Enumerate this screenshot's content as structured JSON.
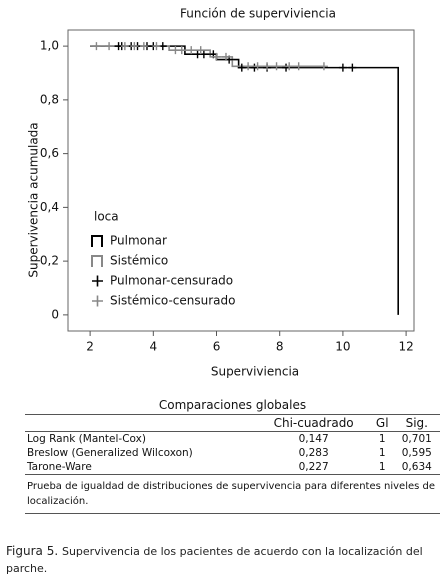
{
  "chart_data": {
    "type": "survival",
    "title": "Función de superviviencia",
    "x_label": "Superviviencia",
    "y_label": "Supervivencia acumulada",
    "xlim": [
      1.3,
      12.25
    ],
    "xticks": [
      2,
      4,
      6,
      8,
      10,
      12
    ],
    "ylim": [
      -0.06,
      1.06
    ],
    "yticks": [
      0,
      {
        "value": 0.2,
        "label": "0,2"
      },
      {
        "value": 0.4,
        "label": "0,4"
      },
      {
        "value": 0.6,
        "label": "0,6"
      },
      {
        "value": 0.8,
        "label": "0,8"
      },
      {
        "value": 1.0,
        "label": "1,0"
      }
    ],
    "legend_title": "loca",
    "legend": "lower left",
    "series": [
      {
        "name": "Pulmonar",
        "style": "step",
        "color": "#000000",
        "x": [
          2.0,
          5.0,
          6.0,
          6.7,
          11.75
        ],
        "values": [
          1.0,
          0.97,
          0.95,
          0.92,
          0.0
        ]
      },
      {
        "name": "Sistémico",
        "style": "step",
        "color": "#888888",
        "x": [
          2.0,
          4.5,
          5.8,
          6.5,
          9.4
        ],
        "values": [
          1.0,
          0.985,
          0.96,
          0.925,
          0.925
        ]
      },
      {
        "name": "Pulmonar-censurado",
        "style": "censor",
        "color": "#000000",
        "x": [
          2.9,
          3.0,
          3.3,
          3.5,
          3.8,
          4.0,
          4.3,
          5.4,
          5.6,
          5.9,
          6.4,
          6.8,
          7.2,
          7.6,
          8.2,
          10.0,
          10.3
        ],
        "values": [
          1.0,
          1.0,
          1.0,
          1.0,
          1.0,
          1.0,
          1.0,
          0.97,
          0.97,
          0.97,
          0.95,
          0.92,
          0.92,
          0.92,
          0.92,
          0.92,
          0.92
        ]
      },
      {
        "name": "Sistémico-censurado",
        "style": "censor",
        "color": "#888888",
        "x": [
          2.2,
          2.6,
          3.1,
          3.4,
          3.7,
          4.1,
          4.7,
          4.9,
          5.2,
          5.5,
          6.0,
          6.3,
          7.0,
          7.3,
          7.6,
          7.9,
          8.3,
          8.6,
          9.4
        ],
        "values": [
          1.0,
          1.0,
          1.0,
          1.0,
          1.0,
          1.0,
          0.985,
          0.985,
          0.985,
          0.985,
          0.96,
          0.96,
          0.925,
          0.925,
          0.925,
          0.925,
          0.925,
          0.925,
          0.925
        ]
      }
    ]
  },
  "table": {
    "title": "Comparaciones globales",
    "header": [
      "Chi-cuadrado",
      "Gl",
      "Sig."
    ],
    "rows": [
      [
        "Log Rank (Mantel-Cox)",
        "0,147",
        "1",
        "0,701"
      ],
      [
        "Breslow (Generalized Wilcoxon)",
        "0,283",
        "1",
        "0,595"
      ],
      [
        "Tarone-Ware",
        "0,227",
        "1",
        "0,634"
      ]
    ],
    "note": "Prueba de igualdad de distribuciones de supervivencia para diferentes niveles de localización."
  },
  "caption": {
    "label": "Figura 5.",
    "text": "Supervivencia de los pacientes de acuerdo con la localización del parche."
  }
}
